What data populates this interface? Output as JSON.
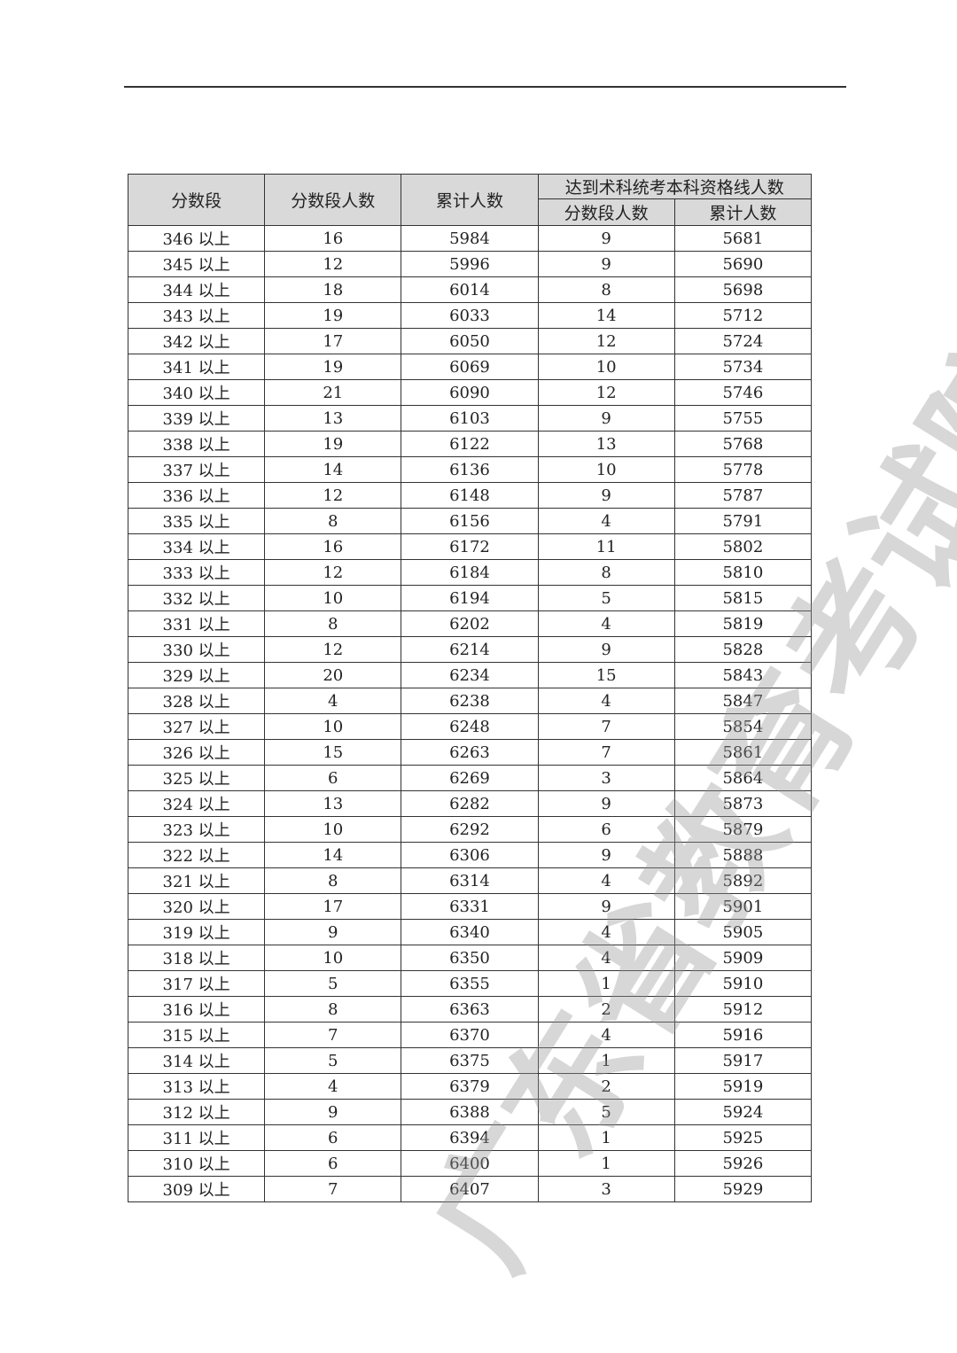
{
  "watermark": "广东省教育考试院",
  "table": {
    "headers": {
      "score_band": "分数段",
      "band_count": "分数段人数",
      "cumulative": "累计人数",
      "qualified_group": "达到术科统考本科资格线人数",
      "qualified_band_count": "分数段人数",
      "qualified_cumulative": "累计人数"
    },
    "rows": [
      [
        "346 以上",
        "16",
        "5984",
        "9",
        "5681"
      ],
      [
        "345 以上",
        "12",
        "5996",
        "9",
        "5690"
      ],
      [
        "344 以上",
        "18",
        "6014",
        "8",
        "5698"
      ],
      [
        "343 以上",
        "19",
        "6033",
        "14",
        "5712"
      ],
      [
        "342 以上",
        "17",
        "6050",
        "12",
        "5724"
      ],
      [
        "341 以上",
        "19",
        "6069",
        "10",
        "5734"
      ],
      [
        "340 以上",
        "21",
        "6090",
        "12",
        "5746"
      ],
      [
        "339 以上",
        "13",
        "6103",
        "9",
        "5755"
      ],
      [
        "338 以上",
        "19",
        "6122",
        "13",
        "5768"
      ],
      [
        "337 以上",
        "14",
        "6136",
        "10",
        "5778"
      ],
      [
        "336 以上",
        "12",
        "6148",
        "9",
        "5787"
      ],
      [
        "335 以上",
        "8",
        "6156",
        "4",
        "5791"
      ],
      [
        "334 以上",
        "16",
        "6172",
        "11",
        "5802"
      ],
      [
        "333 以上",
        "12",
        "6184",
        "8",
        "5810"
      ],
      [
        "332 以上",
        "10",
        "6194",
        "5",
        "5815"
      ],
      [
        "331 以上",
        "8",
        "6202",
        "4",
        "5819"
      ],
      [
        "330 以上",
        "12",
        "6214",
        "9",
        "5828"
      ],
      [
        "329 以上",
        "20",
        "6234",
        "15",
        "5843"
      ],
      [
        "328 以上",
        "4",
        "6238",
        "4",
        "5847"
      ],
      [
        "327 以上",
        "10",
        "6248",
        "7",
        "5854"
      ],
      [
        "326 以上",
        "15",
        "6263",
        "7",
        "5861"
      ],
      [
        "325 以上",
        "6",
        "6269",
        "3",
        "5864"
      ],
      [
        "324 以上",
        "13",
        "6282",
        "9",
        "5873"
      ],
      [
        "323 以上",
        "10",
        "6292",
        "6",
        "5879"
      ],
      [
        "322 以上",
        "14",
        "6306",
        "9",
        "5888"
      ],
      [
        "321 以上",
        "8",
        "6314",
        "4",
        "5892"
      ],
      [
        "320 以上",
        "17",
        "6331",
        "9",
        "5901"
      ],
      [
        "319 以上",
        "9",
        "6340",
        "4",
        "5905"
      ],
      [
        "318 以上",
        "10",
        "6350",
        "4",
        "5909"
      ],
      [
        "317 以上",
        "5",
        "6355",
        "1",
        "5910"
      ],
      [
        "316 以上",
        "8",
        "6363",
        "2",
        "5912"
      ],
      [
        "315 以上",
        "7",
        "6370",
        "4",
        "5916"
      ],
      [
        "314 以上",
        "5",
        "6375",
        "1",
        "5917"
      ],
      [
        "313 以上",
        "4",
        "6379",
        "2",
        "5919"
      ],
      [
        "312 以上",
        "9",
        "6388",
        "5",
        "5924"
      ],
      [
        "311 以上",
        "6",
        "6394",
        "1",
        "5925"
      ],
      [
        "310 以上",
        "6",
        "6400",
        "1",
        "5926"
      ],
      [
        "309 以上",
        "7",
        "6407",
        "3",
        "5929"
      ]
    ]
  }
}
